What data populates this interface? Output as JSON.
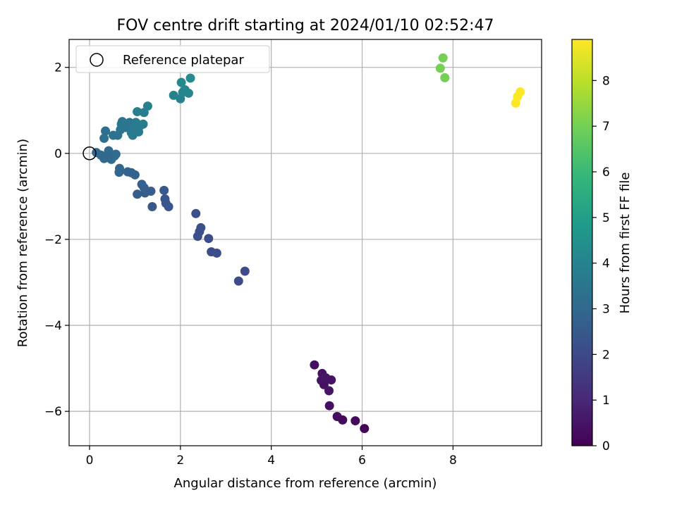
{
  "chart_data": {
    "type": "scatter",
    "title": "FOV centre drift starting at 2024/01/10 02:52:47",
    "xlabel": "Angular distance from reference (arcmin)",
    "ylabel": "Rotation from reference (arcmin)",
    "xlim": [
      -0.45,
      9.95
    ],
    "ylim": [
      -6.8,
      2.65
    ],
    "xticks": [
      "0",
      "2",
      "4",
      "6",
      "8"
    ],
    "yticks": [
      "−6",
      "−4",
      "−2",
      "0",
      "2"
    ],
    "grid": true,
    "legend": {
      "label": "Reference platepar",
      "placement": "top-left"
    },
    "reference_point": {
      "x": 0,
      "y": 0
    },
    "colorbar": {
      "label": "Hours from first FF file",
      "range": [
        0,
        8.9
      ],
      "ticks": [
        "0",
        "1",
        "2",
        "3",
        "4",
        "5",
        "6",
        "7",
        "8"
      ],
      "colormap": "viridis",
      "colors": [
        "#440154",
        "#482878",
        "#3e4989",
        "#31688e",
        "#26828e",
        "#1f9e89",
        "#35b779",
        "#6ece58",
        "#b5de2b",
        "#fde725"
      ]
    },
    "points": [
      {
        "x": 4.95,
        "y": -4.92,
        "h": 0.35
      },
      {
        "x": 5.12,
        "y": -5.12,
        "h": 0.4
      },
      {
        "x": 5.1,
        "y": -5.28,
        "h": 0.45
      },
      {
        "x": 5.16,
        "y": -5.38,
        "h": 0.4
      },
      {
        "x": 5.2,
        "y": -5.22,
        "h": 0.5
      },
      {
        "x": 5.27,
        "y": -5.52,
        "h": 0.5
      },
      {
        "x": 5.32,
        "y": -5.27,
        "h": 0.45
      },
      {
        "x": 5.28,
        "y": -5.87,
        "h": 0.35
      },
      {
        "x": 5.45,
        "y": -6.12,
        "h": 0.3
      },
      {
        "x": 5.57,
        "y": -6.2,
        "h": 0.25
      },
      {
        "x": 5.85,
        "y": -6.22,
        "h": 0.2
      },
      {
        "x": 6.05,
        "y": -6.4,
        "h": 0.1
      },
      {
        "x": 3.28,
        "y": -2.97,
        "h": 2.0
      },
      {
        "x": 3.42,
        "y": -2.74,
        "h": 2.0
      },
      {
        "x": 2.68,
        "y": -2.29,
        "h": 2.1
      },
      {
        "x": 2.8,
        "y": -2.32,
        "h": 2.1
      },
      {
        "x": 2.62,
        "y": -1.98,
        "h": 2.15
      },
      {
        "x": 2.38,
        "y": -1.93,
        "h": 2.2
      },
      {
        "x": 2.42,
        "y": -1.82,
        "h": 2.2
      },
      {
        "x": 2.45,
        "y": -1.73,
        "h": 2.2
      },
      {
        "x": 2.34,
        "y": -1.4,
        "h": 2.2
      },
      {
        "x": 1.64,
        "y": -0.86,
        "h": 2.5
      },
      {
        "x": 1.66,
        "y": -1.06,
        "h": 2.4
      },
      {
        "x": 1.68,
        "y": -1.16,
        "h": 2.4
      },
      {
        "x": 1.74,
        "y": -1.24,
        "h": 2.4
      },
      {
        "x": 1.38,
        "y": -1.24,
        "h": 2.45
      },
      {
        "x": 1.35,
        "y": -0.88,
        "h": 2.6
      },
      {
        "x": 1.22,
        "y": -0.92,
        "h": 2.6
      },
      {
        "x": 1.05,
        "y": -0.95,
        "h": 2.6
      },
      {
        "x": 1.15,
        "y": -0.72,
        "h": 2.7
      },
      {
        "x": 1.2,
        "y": -0.8,
        "h": 2.7
      },
      {
        "x": 0.92,
        "y": -0.45,
        "h": 2.8
      },
      {
        "x": 1.0,
        "y": -0.5,
        "h": 2.8
      },
      {
        "x": 0.84,
        "y": -0.43,
        "h": 2.8
      },
      {
        "x": 0.66,
        "y": -0.35,
        "h": 2.9
      },
      {
        "x": 0.65,
        "y": -0.44,
        "h": 2.9
      },
      {
        "x": 0.15,
        "y": 0.02,
        "h": 3.0
      },
      {
        "x": 0.25,
        "y": -0.04,
        "h": 3.0
      },
      {
        "x": 0.32,
        "y": -0.12,
        "h": 3.0
      },
      {
        "x": 0.42,
        "y": 0.06,
        "h": 3.05
      },
      {
        "x": 0.48,
        "y": -0.14,
        "h": 3.1
      },
      {
        "x": 0.55,
        "y": -0.06,
        "h": 3.1
      },
      {
        "x": 0.58,
        "y": -0.02,
        "h": 3.1
      },
      {
        "x": 0.42,
        "y": -0.1,
        "h": 3.0
      },
      {
        "x": 0.32,
        "y": 0.35,
        "h": 3.2
      },
      {
        "x": 0.35,
        "y": 0.52,
        "h": 3.2
      },
      {
        "x": 0.52,
        "y": 0.42,
        "h": 3.3
      },
      {
        "x": 0.62,
        "y": 0.42,
        "h": 3.3
      },
      {
        "x": 0.68,
        "y": 0.55,
        "h": 3.4
      },
      {
        "x": 0.7,
        "y": 0.68,
        "h": 3.4
      },
      {
        "x": 0.72,
        "y": 0.74,
        "h": 3.5
      },
      {
        "x": 0.8,
        "y": 0.6,
        "h": 3.5
      },
      {
        "x": 0.88,
        "y": 0.72,
        "h": 3.5
      },
      {
        "x": 0.92,
        "y": 0.48,
        "h": 3.6
      },
      {
        "x": 0.95,
        "y": 0.42,
        "h": 3.6
      },
      {
        "x": 0.98,
        "y": 0.63,
        "h": 3.6
      },
      {
        "x": 1.02,
        "y": 0.72,
        "h": 3.7
      },
      {
        "x": 1.08,
        "y": 0.5,
        "h": 3.7
      },
      {
        "x": 1.12,
        "y": 0.65,
        "h": 3.7
      },
      {
        "x": 1.18,
        "y": 0.68,
        "h": 3.7
      },
      {
        "x": 1.05,
        "y": 0.97,
        "h": 3.8
      },
      {
        "x": 1.2,
        "y": 0.95,
        "h": 3.8
      },
      {
        "x": 1.28,
        "y": 1.1,
        "h": 3.9
      },
      {
        "x": 1.85,
        "y": 1.35,
        "h": 4.0
      },
      {
        "x": 2.0,
        "y": 1.27,
        "h": 4.0
      },
      {
        "x": 2.05,
        "y": 1.42,
        "h": 4.1
      },
      {
        "x": 2.1,
        "y": 1.48,
        "h": 4.1
      },
      {
        "x": 2.18,
        "y": 1.4,
        "h": 4.1
      },
      {
        "x": 2.02,
        "y": 1.65,
        "h": 4.2
      },
      {
        "x": 2.22,
        "y": 1.75,
        "h": 4.3
      },
      {
        "x": 7.78,
        "y": 2.22,
        "h": 7.0
      },
      {
        "x": 7.72,
        "y": 1.98,
        "h": 7.0
      },
      {
        "x": 7.82,
        "y": 1.76,
        "h": 7.0
      },
      {
        "x": 9.38,
        "y": 1.17,
        "h": 8.9
      },
      {
        "x": 9.42,
        "y": 1.32,
        "h": 8.9
      },
      {
        "x": 9.48,
        "y": 1.43,
        "h": 8.9
      }
    ]
  }
}
